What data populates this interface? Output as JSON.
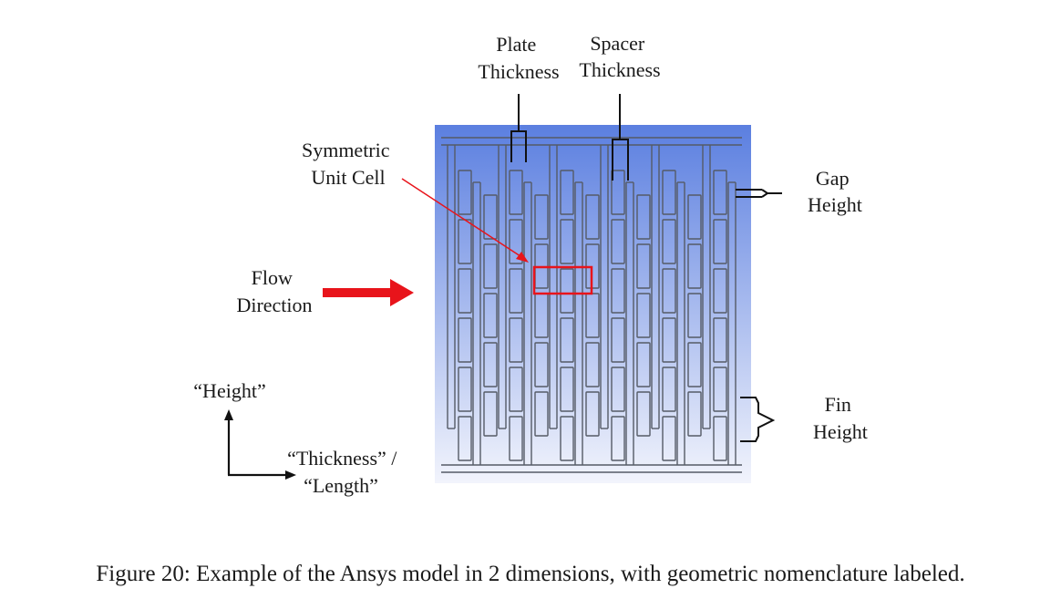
{
  "labels": {
    "plate_thickness": [
      "Plate",
      "Thickness"
    ],
    "spacer_thickness": [
      "Spacer",
      "Thickness"
    ],
    "symmetric_unit_cell": [
      "Symmetric",
      "Unit Cell"
    ],
    "gap_height": [
      "Gap",
      "Height"
    ],
    "flow_direction": [
      "Flow",
      "Direction"
    ],
    "fin_height": [
      "Fin",
      "Height"
    ],
    "axis_height": "“Height”",
    "axis_thickness_length": [
      "“Thickness” /",
      "“Length”"
    ]
  },
  "caption": "Figure 20: Example of the Ansys model in 2 dimensions, with geometric nomenclature labeled.",
  "colors": {
    "fluid_top": "#5b7fe0",
    "fluid_bottom": "#f2f4fc",
    "structure": "#555b66",
    "flow_arrow": "#e8141b",
    "unit_cell": "#e8141b",
    "leader": "#111111"
  },
  "icons": {
    "flow_arrow": "right-arrow",
    "height_axis": "up-arrow",
    "thickness_axis": "right-arrow"
  }
}
